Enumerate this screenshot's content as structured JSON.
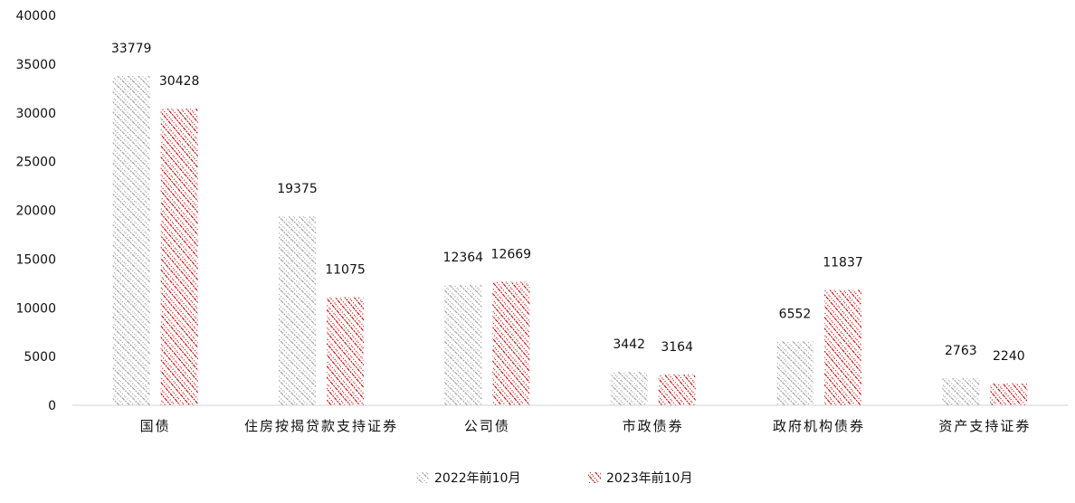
{
  "chart_data": {
    "type": "bar",
    "categories": [
      "国债",
      "住房按揭贷款支持证券",
      "公司债",
      "市政债券",
      "政府机构债券",
      "资产支持证券"
    ],
    "series": [
      {
        "name": "2022年前10月",
        "values": [
          33779,
          19375,
          12364,
          3442,
          6552,
          2763
        ],
        "color": "#9a9a9a",
        "pattern": "diagonal-hatch"
      },
      {
        "name": "2023年前10月",
        "values": [
          30428,
          11075,
          12669,
          3164,
          11837,
          2240
        ],
        "color": "#c00000",
        "pattern": "diagonal-hatch"
      }
    ],
    "ylim": [
      0,
      40000
    ],
    "yticks": [
      "0",
      "5000",
      "10000",
      "15000",
      "20000",
      "25000",
      "30000",
      "35000",
      "40000"
    ],
    "data_labels": true,
    "grid": false,
    "legend_position": "bottom-center"
  }
}
